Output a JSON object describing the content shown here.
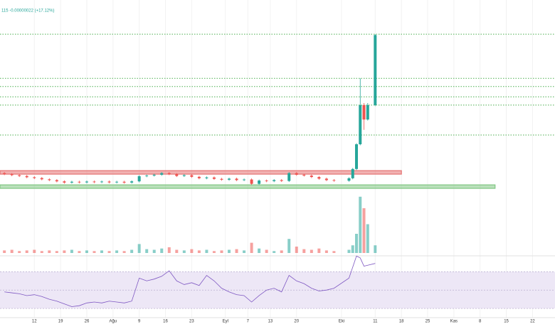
{
  "chart_data": {
    "type": "candlestick",
    "legend_text": "115 -0.00000022 (+17.12%)",
    "xlim": [
      -0.6,
      147
    ],
    "xticks": [
      {
        "value": 8,
        "label": "12"
      },
      {
        "value": 15,
        "label": "19"
      },
      {
        "value": 22,
        "label": "26"
      },
      {
        "value": 29,
        "label": "Ağu"
      },
      {
        "value": 36,
        "label": "9"
      },
      {
        "value": 43,
        "label": "16"
      },
      {
        "value": 50,
        "label": "23"
      },
      {
        "value": 59,
        "label": "Eyl"
      },
      {
        "value": 65,
        "label": "7"
      },
      {
        "value": 71,
        "label": "13"
      },
      {
        "value": 78,
        "label": "20"
      },
      {
        "value": 90,
        "label": "Eki"
      },
      {
        "value": 99,
        "label": "11"
      },
      {
        "value": 106,
        "label": "18"
      },
      {
        "value": 113,
        "label": "25"
      },
      {
        "value": 120,
        "label": "Kas"
      },
      {
        "value": 127,
        "label": "8"
      },
      {
        "value": 134,
        "label": "15"
      },
      {
        "value": 141,
        "label": "22"
      }
    ],
    "ylim": [
      0,
      100
    ],
    "up_color": "#26a69a",
    "down_color": "#ef5350",
    "x": [
      0,
      2,
      4,
      6,
      8,
      10,
      12,
      14,
      16,
      18,
      20,
      22,
      24,
      26,
      28,
      30,
      32,
      34,
      36,
      38,
      40,
      42,
      44,
      46,
      48,
      50,
      52,
      54,
      56,
      58,
      60,
      62,
      64,
      66,
      68,
      70,
      72,
      74,
      76,
      78,
      80,
      82,
      84,
      86,
      88,
      92,
      93,
      94,
      95,
      96,
      97,
      99
    ],
    "candles": {
      "open": [
        16,
        15.5,
        15,
        14.6,
        14,
        13.6,
        13,
        12.6,
        12,
        11.4,
        11.8,
        11.5,
        11.9,
        11.6,
        11.9,
        11.5,
        11.8,
        11.4,
        12,
        14.5,
        14.8,
        15.2,
        16,
        15.5,
        14.6,
        15,
        14.2,
        13.5,
        13.9,
        13.2,
        12.8,
        13.3,
        12.6,
        12.9,
        10.8,
        12.4,
        12.1,
        12.6,
        12.2,
        16,
        15.2,
        14.8,
        14.1,
        13.3,
        12.6,
        12.3,
        13.5,
        18,
        30,
        49,
        42,
        49
      ],
      "high": [
        16.5,
        16,
        15.5,
        15.1,
        14.5,
        14.1,
        13.5,
        13.1,
        12.5,
        12.3,
        12.3,
        12.4,
        12.4,
        12.4,
        12.4,
        12.3,
        12.3,
        12.5,
        15,
        15.3,
        15.7,
        16.5,
        16.5,
        16,
        15.5,
        15.5,
        14.7,
        14.4,
        14.4,
        13.7,
        13.8,
        13.8,
        13.4,
        13.4,
        12.9,
        12.9,
        13.1,
        13.1,
        16.5,
        16.5,
        15.7,
        15.3,
        14.6,
        13.8,
        13.1,
        14,
        18.5,
        30.5,
        62,
        50,
        50,
        83.4
      ],
      "low": [
        15,
        14.5,
        14.1,
        13.5,
        13.1,
        12.5,
        12.1,
        11.5,
        10.9,
        10.9,
        11,
        11,
        11.1,
        11.1,
        11,
        11,
        10.9,
        10.9,
        11.5,
        14,
        14.3,
        14.7,
        15,
        14.1,
        14.1,
        13.7,
        13,
        13,
        12.7,
        12.3,
        12.3,
        12.1,
        12.1,
        10.3,
        10.3,
        11.6,
        11.6,
        11.7,
        11.7,
        14.7,
        14.3,
        13.6,
        12.8,
        12.1,
        11.8,
        11.8,
        13,
        17.5,
        29.5,
        37,
        41.5,
        48.5
      ],
      "close": [
        15.5,
        15,
        14.6,
        14,
        13.6,
        13,
        12.6,
        12,
        11.4,
        11.8,
        11.5,
        11.9,
        11.6,
        11.9,
        11.5,
        11.8,
        11.4,
        12,
        14.5,
        14.8,
        15.2,
        16,
        15.5,
        14.6,
        15,
        14.2,
        13.5,
        13.9,
        13.2,
        12.8,
        13.3,
        12.6,
        12.9,
        10.8,
        12.4,
        12.1,
        12.6,
        12.2,
        16,
        15.2,
        14.8,
        14.1,
        13.3,
        12.6,
        12.3,
        13.5,
        18,
        30,
        49,
        42,
        49,
        83
      ]
    },
    "levels": {
      "color": "#4caf50",
      "values": [
        83.4,
        62,
        58,
        53,
        49,
        34.5
      ]
    },
    "zones": [
      {
        "color": "#e57373",
        "range": [
          15.5,
          17.2
        ],
        "x_end": 106
      },
      {
        "color": "#81c784",
        "range": [
          8.6,
          10.3
        ],
        "x_end": 131
      }
    ],
    "volume": {
      "ylim": [
        0,
        100
      ],
      "values": [
        4,
        5,
        3,
        4,
        5,
        3,
        4,
        3,
        4,
        5,
        3,
        4,
        3,
        4,
        3,
        4,
        3,
        5,
        14,
        6,
        5,
        7,
        9,
        5,
        4,
        6,
        4,
        5,
        3,
        4,
        5,
        6,
        4,
        16,
        7,
        5,
        3,
        4,
        22,
        10,
        6,
        5,
        7,
        4,
        3,
        5,
        12,
        30,
        88,
        70,
        45,
        12
      ]
    },
    "rsi": {
      "ylim": [
        20,
        95
      ],
      "levels": [
        30,
        50,
        70
      ],
      "color": "#7e57c2",
      "band_color": "#ede7f6",
      "values": [
        48,
        47,
        46,
        44,
        45,
        43,
        40,
        38,
        35,
        32,
        33,
        36,
        37,
        36,
        38,
        37,
        36,
        38,
        63,
        60,
        62,
        65,
        71,
        60,
        56,
        58,
        55,
        66,
        60,
        52,
        48,
        45,
        44,
        37,
        44,
        50,
        52,
        48,
        66,
        60,
        57,
        52,
        49,
        50,
        52,
        63,
        75,
        87,
        85,
        76,
        77,
        79
      ]
    }
  }
}
